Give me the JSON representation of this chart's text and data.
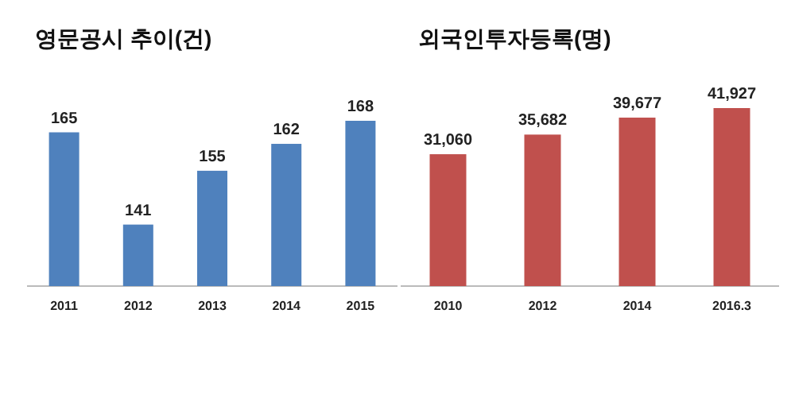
{
  "chart_data": [
    {
      "type": "bar",
      "title": "영문공시 추이(건)",
      "categories": [
        "2011",
        "2012",
        "2013",
        "2014",
        "2015"
      ],
      "values": [
        165,
        141,
        155,
        162,
        168
      ],
      "color": "#4f81bd",
      "ylim": [
        125,
        168
      ],
      "tick_labels": "x",
      "data_labels": true
    },
    {
      "type": "bar",
      "title": "외국인투자등록(명)",
      "categories": [
        "2010",
        "2012",
        "2014",
        "2016.3"
      ],
      "values": [
        31060,
        35682,
        39677,
        41927
      ],
      "value_labels": [
        "31,060",
        "35,682",
        "39,677",
        "41,927"
      ],
      "color": "#c0504d",
      "ylim": [
        0,
        41927
      ],
      "tick_labels": "x"
    }
  ]
}
